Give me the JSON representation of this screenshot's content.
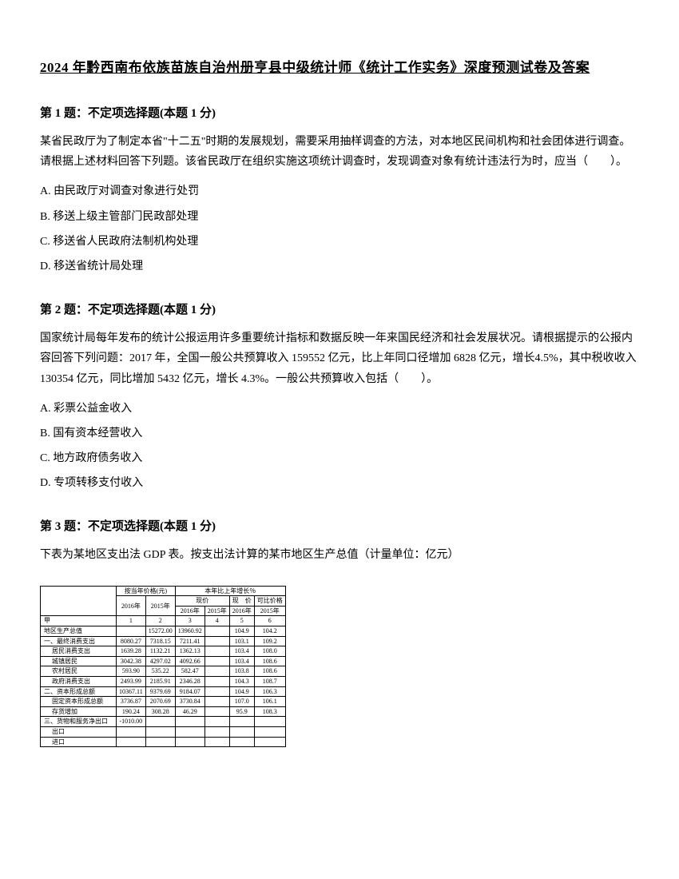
{
  "title": "2024 年黔西南布依族苗族自治州册亨县中级统计师《统计工作实务》深度预测试卷及答案",
  "q1": {
    "header": "第 1 题：不定项选择题(本题 1 分)",
    "text": "某省民政厅为了制定本省\"十二五\"时期的发展规划，需要采用抽样调查的方法，对本地区民间机构和社会团体进行调查。 请根据上述材料回答下列题。该省民政厅在组织实施这项统计调查时，发现调查对象有统计违法行为时，应当（　　）。",
    "optA": "A. 由民政厅对调查对象进行处罚",
    "optB": "B. 移送上级主管部门民政部处理",
    "optC": "C. 移送省人民政府法制机构处理",
    "optD": "D. 移送省统计局处理"
  },
  "q2": {
    "header": "第 2 题：不定项选择题(本题 1 分)",
    "text": "国家统计局每年发布的统计公报运用许多重要统计指标和数据反映一年来国民经济和社会发展状况。请根据提示的公报内容回答下列问题：2017 年，全国一般公共预算收入 159552 亿元，比上年同口径增加 6828 亿元，增长4.5%，其中税收收入 130354 亿元，同比增加 5432 亿元，增长 4.3%。一般公共预算收入包括（　　）。",
    "optA": "A. 彩票公益金收入",
    "optB": "B. 国有资本经营收入",
    "optC": "C. 地方政府债务收入",
    "optD": "D. 专项转移支付收入"
  },
  "q3": {
    "header": "第 3 题：不定项选择题(本题 1 分)",
    "text": "下表为某地区支出法 GDP 表。按支出法计算的某市地区生产总值（计量单位：亿元）",
    "table": {
      "header_group1": "按当年价格(元)",
      "header_group2": "本年比上年增长％",
      "year_2016": "2016年",
      "year_2015": "2015年",
      "sub_2016": "2016年",
      "sub_2015": "2015年",
      "col_real": "现价",
      "col_const_2016": "2016年",
      "col_const_2015": "2015年",
      "col_comp": "可比价格",
      "row_num_header": "甲",
      "nums": [
        "1",
        "2",
        "3",
        "4",
        "5",
        "6"
      ],
      "rows": [
        {
          "label": "地区生产总值",
          "indent": false,
          "cells": [
            "",
            "15272.00",
            "13960.92",
            "",
            "104.9",
            "104.2"
          ]
        },
        {
          "label": "一、最终消费支出",
          "indent": false,
          "cells": [
            "8080.27",
            "7318.15",
            "7211.41",
            "",
            "103.1",
            "109.2"
          ]
        },
        {
          "label": "居民消费支出",
          "indent": true,
          "cells": [
            "1639.28",
            "1132.21",
            "1362.13",
            "",
            "103.4",
            "108.0"
          ]
        },
        {
          "label": "城镇居民",
          "indent": true,
          "cells": [
            "3042.38",
            "4297.02",
            "4092.66",
            "",
            "103.4",
            "108.6"
          ]
        },
        {
          "label": "农村居民",
          "indent": true,
          "cells": [
            "593.90",
            "535.22",
            "582.47",
            "",
            "103.8",
            "108.6"
          ]
        },
        {
          "label": "政府消费支出",
          "indent": true,
          "cells": [
            "2493.99",
            "2185.91",
            "2346.28",
            "",
            "104.3",
            "108.7"
          ]
        },
        {
          "label": "二、资本形成总额",
          "indent": false,
          "cells": [
            "10367.11",
            "9379.69",
            "9184.07",
            "",
            "104.9",
            "106.3"
          ]
        },
        {
          "label": "固定资本形成总额",
          "indent": true,
          "cells": [
            "3736.87",
            "2070.69",
            "3730.84",
            "",
            "107.0",
            "106.1"
          ]
        },
        {
          "label": "存货增加",
          "indent": true,
          "cells": [
            "190.24",
            "308.28",
            "46.29",
            "",
            "95.9",
            "108.3"
          ]
        },
        {
          "label": "三、货物和服务净出口",
          "indent": false,
          "cells": [
            "-1010.00",
            "",
            "",
            "",
            "",
            ""
          ]
        },
        {
          "label": "出口",
          "indent": true,
          "cells": [
            "",
            "",
            "",
            "",
            "",
            ""
          ]
        },
        {
          "label": "进口",
          "indent": true,
          "cells": [
            "",
            "",
            "",
            "",
            "",
            ""
          ]
        }
      ]
    }
  }
}
